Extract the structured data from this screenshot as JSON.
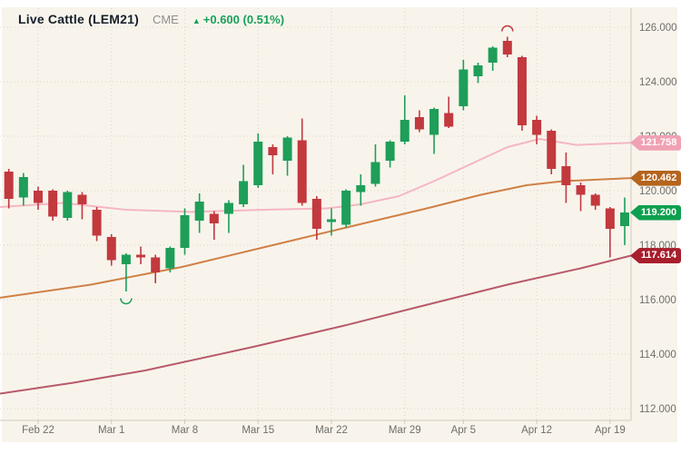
{
  "header": {
    "symbol": "Live Cattle (LEM21)",
    "exchange": "CME",
    "change_arrow": "▲",
    "change_text": "+0.600 (0.51%)",
    "change_color": "#18a05b"
  },
  "colors": {
    "panel_background": "#f8f4ec",
    "grid": "#ddd5c5",
    "axis": "#cfc9bc",
    "axis_text": "#6f6e6a",
    "candle_up": "#1e9e58",
    "candle_down": "#c2393e"
  },
  "y_axis": {
    "labels": [
      {
        "label": "126.000",
        "price": 126
      },
      {
        "label": "124.000",
        "price": 124
      },
      {
        "label": "122.000",
        "price": 122
      },
      {
        "label": "120.000",
        "price": 120
      },
      {
        "label": "118.000",
        "price": 118
      },
      {
        "label": "116.000",
        "price": 116
      },
      {
        "label": "114.000",
        "price": 114
      },
      {
        "label": "112.000",
        "price": 112
      }
    ]
  },
  "x_axis": {
    "ticks": [
      {
        "label": "Feb 22",
        "day": 0
      },
      {
        "label": "Mar 1",
        "day": 5
      },
      {
        "label": "Mar 8",
        "day": 10
      },
      {
        "label": "Mar 15",
        "day": 15
      },
      {
        "label": "Mar 22",
        "day": 20
      },
      {
        "label": "Mar 29",
        "day": 25
      },
      {
        "label": "Apr 5",
        "day": 29
      },
      {
        "label": "Apr 12",
        "day": 34
      },
      {
        "label": "Apr 19",
        "day": 39
      }
    ]
  },
  "price_badges": [
    {
      "label": "121.758",
      "price": 121.758,
      "color": "#f0a2b4",
      "kind": "ma-pink-value"
    },
    {
      "label": "120.462",
      "price": 120.462,
      "color": "#b5641e",
      "kind": "ma-orange-value"
    },
    {
      "label": "119.200",
      "price": 119.2,
      "color": "#0ea04f",
      "kind": "last-price"
    },
    {
      "label": "117.614",
      "price": 117.614,
      "color": "#a81e2c",
      "kind": "ma-maroon-value"
    }
  ],
  "chart_data": {
    "type": "candlestick",
    "title": "Live Cattle (LEM21)",
    "exchange": "CME",
    "last_price": 119.2,
    "change": "+0.600 (0.51%)",
    "up_color": "#1e9e58",
    "down_color": "#c2393e",
    "y_range": [
      112,
      126
    ],
    "candles": [
      {
        "d": "Feb 18",
        "o": 120.7,
        "h": 120.8,
        "l": 119.35,
        "c": 119.7
      },
      {
        "d": "Feb 19",
        "o": 119.75,
        "h": 120.65,
        "l": 119.45,
        "c": 120.5
      },
      {
        "d": "Feb 22",
        "o": 120.0,
        "h": 120.15,
        "l": 119.3,
        "c": 119.55
      },
      {
        "d": "Feb 23",
        "o": 120.0,
        "h": 120.05,
        "l": 118.9,
        "c": 119.05
      },
      {
        "d": "Feb 24",
        "o": 119.0,
        "h": 120.0,
        "l": 118.9,
        "c": 119.95
      },
      {
        "d": "Feb 25",
        "o": 119.85,
        "h": 119.95,
        "l": 118.95,
        "c": 119.5
      },
      {
        "d": "Feb 26",
        "o": 119.3,
        "h": 119.4,
        "l": 118.15,
        "c": 118.35
      },
      {
        "d": "Mar 1",
        "o": 118.3,
        "h": 118.4,
        "l": 117.25,
        "c": 117.45
      },
      {
        "d": "Mar 2",
        "o": 117.3,
        "h": 117.7,
        "l": 116.3,
        "c": 117.65
      },
      {
        "d": "Mar 3",
        "o": 117.65,
        "h": 117.95,
        "l": 117.3,
        "c": 117.55
      },
      {
        "d": "Mar 4",
        "o": 117.55,
        "h": 117.65,
        "l": 116.6,
        "c": 117.0
      },
      {
        "d": "Mar 5",
        "o": 117.15,
        "h": 117.95,
        "l": 117.0,
        "c": 117.9
      },
      {
        "d": "Mar 8",
        "o": 117.9,
        "h": 119.35,
        "l": 117.65,
        "c": 119.1
      },
      {
        "d": "Mar 9",
        "o": 118.9,
        "h": 119.9,
        "l": 118.45,
        "c": 119.6
      },
      {
        "d": "Mar 10",
        "o": 119.15,
        "h": 119.25,
        "l": 118.2,
        "c": 118.8
      },
      {
        "d": "Mar 11",
        "o": 119.15,
        "h": 119.65,
        "l": 118.45,
        "c": 119.55
      },
      {
        "d": "Mar 12",
        "o": 119.5,
        "h": 120.95,
        "l": 119.4,
        "c": 120.35
      },
      {
        "d": "Mar 15",
        "o": 120.2,
        "h": 122.1,
        "l": 120.1,
        "c": 121.8
      },
      {
        "d": "Mar 16",
        "o": 121.6,
        "h": 121.7,
        "l": 120.6,
        "c": 121.3
      },
      {
        "d": "Mar 17",
        "o": 121.1,
        "h": 122.0,
        "l": 120.55,
        "c": 121.95
      },
      {
        "d": "Mar 18",
        "o": 121.85,
        "h": 122.65,
        "l": 119.45,
        "c": 119.55
      },
      {
        "d": "Mar 19",
        "o": 119.7,
        "h": 119.8,
        "l": 118.2,
        "c": 118.6
      },
      {
        "d": "Mar 22",
        "o": 118.85,
        "h": 119.35,
        "l": 118.35,
        "c": 118.95
      },
      {
        "d": "Mar 23",
        "o": 118.75,
        "h": 120.05,
        "l": 118.65,
        "c": 120.0
      },
      {
        "d": "Mar 24",
        "o": 119.95,
        "h": 120.6,
        "l": 119.45,
        "c": 120.2
      },
      {
        "d": "Mar 25",
        "o": 120.25,
        "h": 121.7,
        "l": 120.15,
        "c": 121.05
      },
      {
        "d": "Mar 26",
        "o": 121.1,
        "h": 121.85,
        "l": 120.85,
        "c": 121.8
      },
      {
        "d": "Mar 29",
        "o": 121.8,
        "h": 123.5,
        "l": 121.7,
        "c": 122.6
      },
      {
        "d": "Mar 30",
        "o": 122.7,
        "h": 122.95,
        "l": 122.15,
        "c": 122.25
      },
      {
        "d": "Mar 31",
        "o": 122.05,
        "h": 123.05,
        "l": 121.35,
        "c": 123.0
      },
      {
        "d": "Apr 1",
        "o": 122.85,
        "h": 123.45,
        "l": 122.3,
        "c": 122.35
      },
      {
        "d": "Apr 5",
        "o": 123.1,
        "h": 124.8,
        "l": 122.95,
        "c": 124.45
      },
      {
        "d": "Apr 6",
        "o": 124.2,
        "h": 124.7,
        "l": 123.95,
        "c": 124.6
      },
      {
        "d": "Apr 7",
        "o": 124.7,
        "h": 125.3,
        "l": 124.4,
        "c": 125.25
      },
      {
        "d": "Apr 8",
        "o": 125.5,
        "h": 125.65,
        "l": 124.9,
        "c": 125.0
      },
      {
        "d": "Apr 9",
        "o": 124.9,
        "h": 124.95,
        "l": 122.2,
        "c": 122.4
      },
      {
        "d": "Apr 12",
        "o": 122.6,
        "h": 122.75,
        "l": 121.7,
        "c": 122.05
      },
      {
        "d": "Apr 13",
        "o": 122.2,
        "h": 122.25,
        "l": 120.6,
        "c": 120.8
      },
      {
        "d": "Apr 14",
        "o": 120.9,
        "h": 121.4,
        "l": 119.55,
        "c": 120.2
      },
      {
        "d": "Apr 15",
        "o": 120.2,
        "h": 120.3,
        "l": 119.25,
        "c": 119.85
      },
      {
        "d": "Apr 16",
        "o": 119.85,
        "h": 119.9,
        "l": 119.3,
        "c": 119.45
      },
      {
        "d": "Apr 19",
        "o": 119.35,
        "h": 119.4,
        "l": 117.55,
        "c": 118.6
      },
      {
        "d": "Apr 20",
        "o": 118.7,
        "h": 119.75,
        "l": 118.0,
        "c": 119.2
      }
    ],
    "moving_averages": [
      {
        "name": "ma-pink",
        "color": "#f5b6c2",
        "last_value": 121.758,
        "points": [
          [
            -2.6,
            119.4
          ],
          [
            1.7,
            119.55
          ],
          [
            6,
            119.3
          ],
          [
            10.4,
            119.22
          ],
          [
            15.4,
            119.3
          ],
          [
            19.7,
            119.35
          ],
          [
            22,
            119.5
          ],
          [
            24.6,
            119.8
          ],
          [
            27,
            120.35
          ],
          [
            29.6,
            121.0
          ],
          [
            32,
            121.6
          ],
          [
            34.2,
            121.9
          ],
          [
            36.7,
            121.68
          ],
          [
            40.4,
            121.758
          ]
        ]
      },
      {
        "name": "ma-orange",
        "color": "#d08045",
        "last_value": 120.462,
        "points": [
          [
            -2.6,
            116.07
          ],
          [
            3.6,
            116.55
          ],
          [
            9.8,
            117.2
          ],
          [
            16,
            118.0
          ],
          [
            22.2,
            118.8
          ],
          [
            26.5,
            119.35
          ],
          [
            30.2,
            119.85
          ],
          [
            33.3,
            120.2
          ],
          [
            35.8,
            120.35
          ],
          [
            40.4,
            120.462
          ]
        ]
      },
      {
        "name": "ma-maroon",
        "color": "#b85a6b",
        "last_value": 117.614,
        "points": [
          [
            -2.6,
            112.55
          ],
          [
            2.4,
            112.95
          ],
          [
            7.3,
            113.4
          ],
          [
            14.7,
            114.27
          ],
          [
            20.9,
            115.05
          ],
          [
            25.9,
            115.73
          ],
          [
            32,
            116.55
          ],
          [
            37,
            117.15
          ],
          [
            40.4,
            117.614
          ]
        ]
      }
    ],
    "annotations": [
      {
        "date": "Mar 2",
        "type": "low",
        "price": 116.05
      },
      {
        "date": "Apr 8",
        "type": "high",
        "price": 125.85
      }
    ]
  }
}
